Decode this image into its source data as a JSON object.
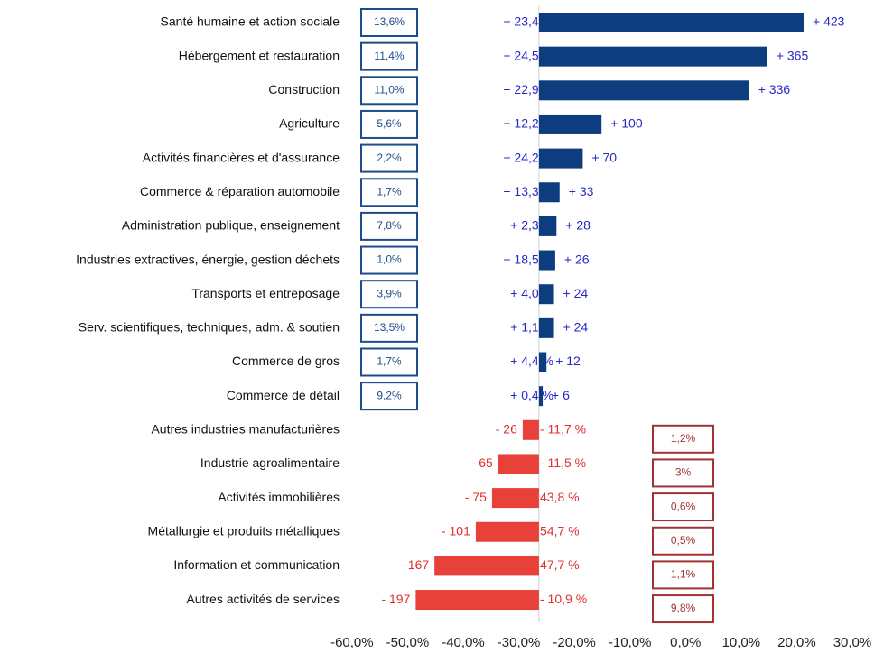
{
  "chart_data": {
    "type": "bar",
    "categories": [
      "Santé humaine et action sociale",
      "Hébergement et restauration",
      "Construction",
      "Agriculture",
      "Activités financières et d'assurance",
      "Commerce & réparation automobile",
      "Administration publique, enseignement",
      "Industries extractives, énergie, gestion déchets",
      "Transports et entreposage",
      "Serv. scientifiques, techniques, adm. & soutien",
      "Commerce de gros",
      "Commerce de détail",
      "Autres industries manufacturières",
      "Industrie agroalimentaire",
      "Activités immobilières",
      "Métallurgie et produits métalliques",
      "Information et communication",
      "Autres activités de services"
    ],
    "values": [
      423,
      365,
      336,
      100,
      70,
      33,
      28,
      26,
      24,
      24,
      12,
      6,
      -26,
      -65,
      -75,
      -101,
      -167,
      -197
    ],
    "value_labels": [
      "+ 423",
      "+ 365",
      "+ 336",
      "+ 100",
      "+ 70",
      "+ 33",
      "+ 28",
      "+ 26",
      "+ 24",
      "+ 24",
      "+ 12",
      "+ 6",
      "- 26",
      "- 65",
      "- 75",
      "- 101",
      "- 167",
      "- 197"
    ],
    "percent_labels": [
      "+ 23,4 %",
      "+ 24,5 %",
      "+ 22,9 %",
      "+ 12,2 %",
      "+ 24,2 %",
      "+ 13,3 %",
      "+ 2,3 %",
      "+ 18,5 %",
      "+ 4,0 %",
      "+ 1,1 %",
      "+ 4,4 %",
      "+ 0,4 %",
      "- 11,7 %",
      "- 11,5 %",
      "43,8 %",
      "54,7 %",
      "47,7 %",
      "- 10,9 %"
    ],
    "shares": [
      "13,6%",
      "11,4%",
      "11,0%",
      "5,6%",
      "2,2%",
      "1,7%",
      "7,8%",
      "1,0%",
      "3,9%",
      "13,5%",
      "1,7%",
      "9,2%",
      "1,2%",
      "3%",
      "0,6%",
      "0,5%",
      "1,1%",
      "9,8%"
    ],
    "colors": {
      "positive": "#0d3d7e",
      "negative": "#e8413a"
    },
    "x2lim": [
      -313,
      524
    ],
    "xlim": [
      -61.6,
      32.6
    ],
    "xticks": [
      {
        "value": -60,
        "label": "-60,0%"
      },
      {
        "value": -50,
        "label": "-50,0%"
      },
      {
        "value": -40,
        "label": "-40,0%"
      },
      {
        "value": -30,
        "label": "-30,0%"
      },
      {
        "value": -20,
        "label": "-20,0%"
      },
      {
        "value": -10,
        "label": "-10,0%"
      },
      {
        "value": 0,
        "label": "0,0%"
      },
      {
        "value": 10,
        "label": "10,0%"
      },
      {
        "value": 20,
        "label": "20,0%"
      },
      {
        "value": 30,
        "label": "30,0%"
      }
    ],
    "grid": false
  }
}
